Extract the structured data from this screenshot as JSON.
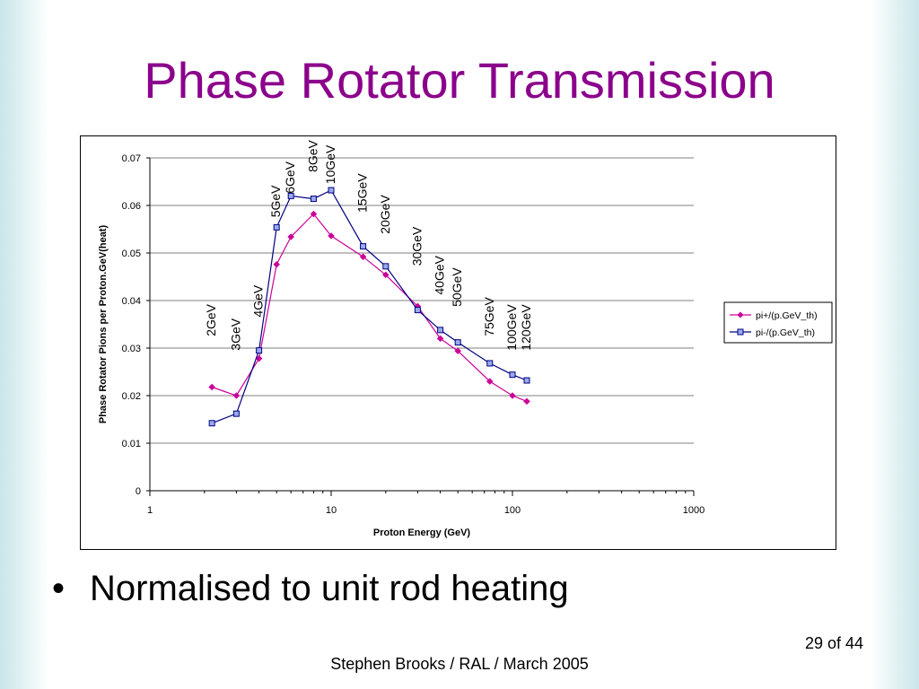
{
  "slide": {
    "title": "Phase Rotator Transmission",
    "bullet_symbol": "•",
    "bullet": "Normalised to unit rod heating",
    "footer": "Stephen Brooks / RAL / March 2005",
    "page_number": "29 of 44"
  },
  "colors": {
    "title": "#8b008b",
    "series_plus": "#cc0099",
    "series_minus": "#000080",
    "marker_minus_fill": "#99aaee"
  },
  "chart_data": {
    "type": "line",
    "xlabel": "Proton Energy (GeV)",
    "ylabel": "Phase Rotator Pions per Proton.GeV(heat)",
    "xscale": "log",
    "xlim": [
      1,
      1000
    ],
    "ylim": [
      0,
      0.07
    ],
    "xticks": [
      "1",
      "10",
      "100",
      "1000"
    ],
    "yticks": [
      "0",
      "0.01",
      "0.02",
      "0.03",
      "0.04",
      "0.05",
      "0.06",
      "0.07"
    ],
    "grid": "horizontal",
    "legend_position": "right",
    "x": [
      2.2,
      3,
      4,
      5,
      6,
      8,
      10,
      15,
      20,
      30,
      40,
      50,
      75,
      100,
      120
    ],
    "series": [
      {
        "name": "pi+/(p.GeV_th)",
        "marker": "diamond",
        "values": [
          0.0218,
          0.02,
          0.0278,
          0.0476,
          0.0534,
          0.0582,
          0.0536,
          0.0492,
          0.0454,
          0.0388,
          0.032,
          0.0294,
          0.023,
          0.02,
          0.0188
        ]
      },
      {
        "name": "pi-/(p.GeV_th)",
        "marker": "square",
        "values": [
          0.0142,
          0.0162,
          0.0295,
          0.0554,
          0.062,
          0.0614,
          0.0632,
          0.0514,
          0.0472,
          0.038,
          0.0338,
          0.0312,
          0.0268,
          0.0244,
          0.0232
        ]
      }
    ],
    "annotations": [
      {
        "text": "2GeV",
        "x": 2.2,
        "y": 0.0325
      },
      {
        "text": "3GeV",
        "x": 3,
        "y": 0.0295
      },
      {
        "text": "4GeV",
        "x": 4,
        "y": 0.0365
      },
      {
        "text": "5GeV",
        "x": 5,
        "y": 0.0575
      },
      {
        "text": "6GeV",
        "x": 6,
        "y": 0.0625
      },
      {
        "text": "8GeV",
        "x": 8,
        "y": 0.067
      },
      {
        "text": "10GeV",
        "x": 10,
        "y": 0.0645
      },
      {
        "text": "15GeV",
        "x": 15,
        "y": 0.0585
      },
      {
        "text": "20GeV",
        "x": 20,
        "y": 0.054
      },
      {
        "text": "30GeV",
        "x": 30,
        "y": 0.0473
      },
      {
        "text": "40GeV",
        "x": 40,
        "y": 0.0412
      },
      {
        "text": "50GeV",
        "x": 50,
        "y": 0.0387
      },
      {
        "text": "75GeV",
        "x": 75,
        "y": 0.0325
      },
      {
        "text": "100GeV",
        "x": 100,
        "y": 0.0295
      },
      {
        "text": "120GeV",
        "x": 120,
        "y": 0.0295
      }
    ]
  }
}
